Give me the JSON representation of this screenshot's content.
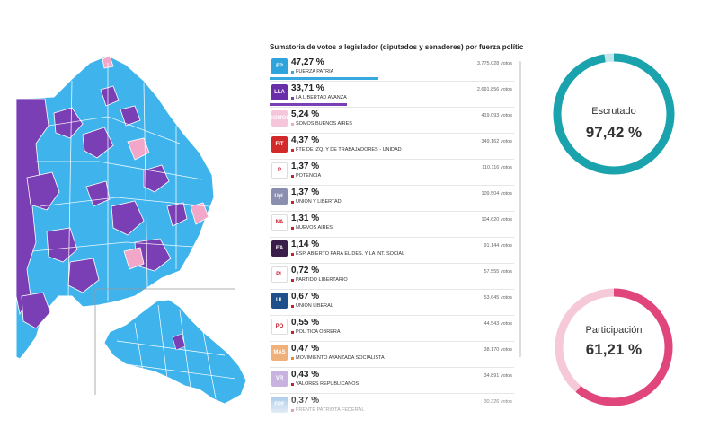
{
  "results": {
    "title": "Sumatoria de votos a legislador (diputados y senadores) por fuerza política",
    "parties": [
      {
        "pct": "47,27 %",
        "name": "FUERZA PATRIA",
        "votes": "3.775.028 votos",
        "share": 0.4727,
        "color": "#37a8e0",
        "logo_bg": "#2fa4dc",
        "logo": "FP"
      },
      {
        "pct": "33,71 %",
        "name": "LA LIBERTAD AVANZA",
        "votes": "2.691.856 votos",
        "share": 0.3371,
        "color": "#7b3fb5",
        "logo_bg": "#6a2fa8",
        "logo": "LLA"
      },
      {
        "pct": "5,24 %",
        "name": "SOMOS BUENOS AIRES",
        "votes": "419.093 votos",
        "share": 0.0524,
        "color": "#f2a7c8",
        "logo_bg": "#f5c6da",
        "logo": "SOMOS"
      },
      {
        "pct": "4,37 %",
        "name": "FTE DE IZQ. Y DE TRABAJADORES - UNIDAD",
        "votes": "349.162 votos",
        "share": 0.0437,
        "color": "#d7262e",
        "logo_bg": "#d22a2a",
        "logo": "FIT"
      },
      {
        "pct": "1,37 %",
        "name": "POTENCIA",
        "votes": "110.116 votos",
        "share": 0.0137,
        "color": "#c9202f",
        "logo_bg": "#ffffff",
        "logo": "P"
      },
      {
        "pct": "1,37 %",
        "name": "UNION Y LIBERTAD",
        "votes": "109.504 votos",
        "share": 0.0137,
        "color": "#c9202f",
        "logo_bg": "#8a8fb0",
        "logo": "UyL"
      },
      {
        "pct": "1,31 %",
        "name": "NUEVOS AIRES",
        "votes": "104.620 votos",
        "share": 0.0131,
        "color": "#c9202f",
        "logo_bg": "#ffffff",
        "logo": "NA"
      },
      {
        "pct": "1,14 %",
        "name": "ESP. ABIERTO PARA EL DES. Y LA INT. SOCIAL",
        "votes": "91.144 votos",
        "share": 0.0114,
        "color": "#c9202f",
        "logo_bg": "#3a1e4a",
        "logo": "EA"
      },
      {
        "pct": "0,72 %",
        "name": "PARTIDO LIBERTARIO",
        "votes": "57.555 votos",
        "share": 0.0072,
        "color": "#c9202f",
        "logo_bg": "#ffffff",
        "logo": "PL"
      },
      {
        "pct": "0,67 %",
        "name": "UNION LIBERAL",
        "votes": "53.645 votos",
        "share": 0.0067,
        "color": "#c9202f",
        "logo_bg": "#1f4f8a",
        "logo": "UL"
      },
      {
        "pct": "0,55 %",
        "name": "POLITICA OBRERA",
        "votes": "44.543 votos",
        "share": 0.0055,
        "color": "#c9202f",
        "logo_bg": "#ffffff",
        "logo": "PO"
      },
      {
        "pct": "0,47 %",
        "name": "MOVIMIENTO AVANZADA SOCIALISTA",
        "votes": "38.170 votos",
        "share": 0.0047,
        "color": "#e8892c",
        "logo_bg": "#f0b07a",
        "logo": "MAS"
      },
      {
        "pct": "0,43 %",
        "name": "VALORES REPUBLICANOS",
        "votes": "34.891 votos",
        "share": 0.0043,
        "color": "#c9202f",
        "logo_bg": "#c8b2df",
        "logo": "VR"
      },
      {
        "pct": "0,37 %",
        "name": "FRENTE PATRIOTA FEDERAL",
        "votes": "30.326 votos",
        "share": 0.0037,
        "color": "#c9202f",
        "logo_bg": "#a8c8e8",
        "logo": "FPF"
      }
    ]
  },
  "gauges": {
    "escrutado": {
      "label": "Escrutado",
      "value": "97,42 %",
      "fraction": 0.9742,
      "color": "#1aa3ad",
      "track": "#bfe6ea"
    },
    "participacion": {
      "label": "Participación",
      "value": "61,21 %",
      "fraction": 0.6121,
      "color": "#e0457c",
      "track": "#f6c9d8"
    }
  },
  "map": {
    "colors": {
      "fuerza_patria": "#3fb4ec",
      "libertad_avanza": "#7b3fb5",
      "somos": "#f2a7c8",
      "border": "#ffffff"
    }
  }
}
